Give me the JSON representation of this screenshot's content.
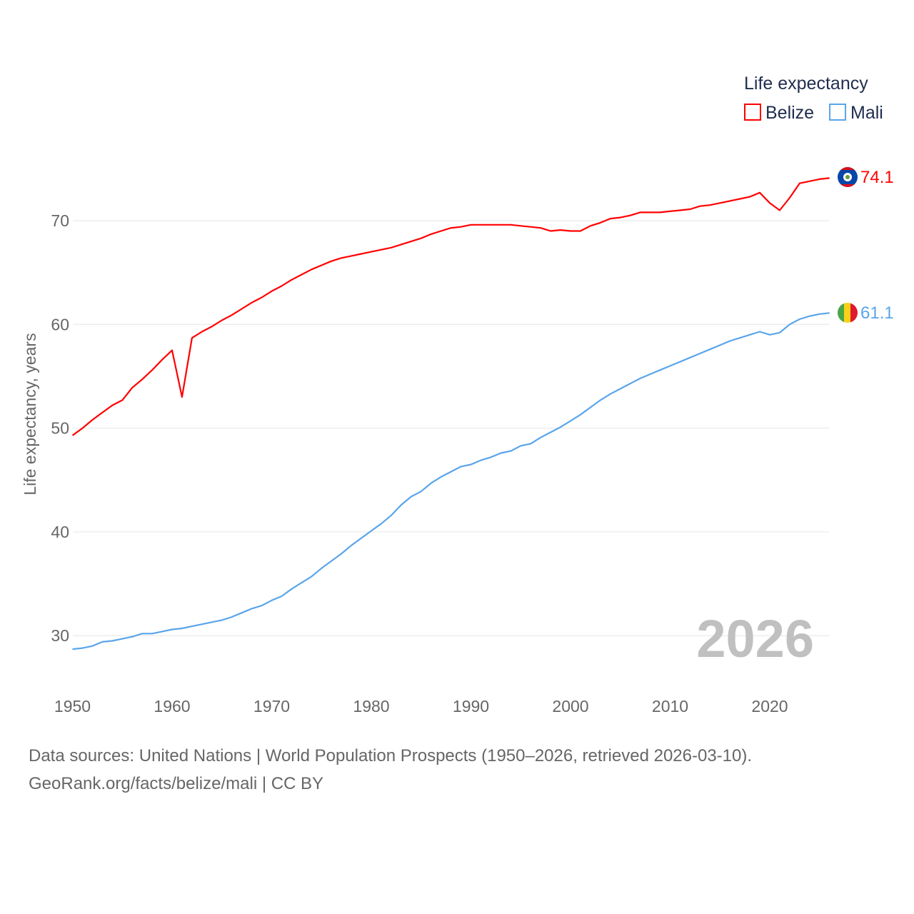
{
  "chart_data": {
    "type": "line",
    "title": "",
    "xlabel": "",
    "ylabel": "Life expectancy, years",
    "xlim": [
      1950,
      2026
    ],
    "ylim": [
      25,
      78
    ],
    "yticks": [
      30,
      40,
      50,
      60,
      70
    ],
    "xticks": [
      1950,
      1960,
      1970,
      1980,
      1990,
      2000,
      2010,
      2020
    ],
    "grid": true,
    "legend_title": "Life expectancy",
    "legend_position": "top-right",
    "year_label": "2026",
    "x_start": 1950,
    "series": [
      {
        "name": "Belize",
        "color": "#ff0000",
        "end_label": "74.1",
        "flag": "belize-flag",
        "values": [
          49.3,
          50.0,
          50.8,
          51.5,
          52.2,
          52.7,
          53.9,
          54.7,
          55.6,
          56.6,
          57.5,
          53.0,
          58.7,
          59.3,
          59.8,
          60.4,
          60.9,
          61.5,
          62.1,
          62.6,
          63.2,
          63.7,
          64.3,
          64.8,
          65.3,
          65.7,
          66.1,
          66.4,
          66.6,
          66.8,
          67.0,
          67.2,
          67.4,
          67.7,
          68.0,
          68.3,
          68.7,
          69.0,
          69.3,
          69.4,
          69.6,
          69.6,
          69.6,
          69.6,
          69.6,
          69.5,
          69.4,
          69.3,
          69.0,
          69.1,
          69.0,
          69.0,
          69.5,
          69.8,
          70.2,
          70.3,
          70.5,
          70.8,
          70.8,
          70.8,
          70.9,
          71.0,
          71.1,
          71.4,
          71.5,
          71.7,
          71.9,
          72.1,
          72.3,
          72.7,
          71.7,
          71.0,
          72.2,
          73.6,
          73.8,
          74.0,
          74.1
        ]
      },
      {
        "name": "Mali",
        "color": "#5aa5ea",
        "end_label": "61.1",
        "flag": "mali-flag",
        "values": [
          28.7,
          28.8,
          29.0,
          29.4,
          29.5,
          29.7,
          29.9,
          30.2,
          30.2,
          30.4,
          30.6,
          30.7,
          30.9,
          31.1,
          31.3,
          31.5,
          31.8,
          32.2,
          32.6,
          32.9,
          33.4,
          33.8,
          34.5,
          35.1,
          35.7,
          36.5,
          37.2,
          37.9,
          38.7,
          39.4,
          40.1,
          40.8,
          41.6,
          42.6,
          43.4,
          43.9,
          44.7,
          45.3,
          45.8,
          46.3,
          46.5,
          46.9,
          47.2,
          47.6,
          47.8,
          48.3,
          48.5,
          49.1,
          49.6,
          50.1,
          50.7,
          51.3,
          52.0,
          52.7,
          53.3,
          53.8,
          54.3,
          54.8,
          55.2,
          55.6,
          56.0,
          56.4,
          56.8,
          57.2,
          57.6,
          58.0,
          58.4,
          58.7,
          59.0,
          59.3,
          59.0,
          59.2,
          60.0,
          60.5,
          60.8,
          61.0,
          61.1
        ]
      }
    ]
  },
  "footer": {
    "sources": "Data sources: United Nations | World Population Prospects (1950–2026, retrieved 2026-03-10).",
    "credit": "GeoRank.org/facts/belize/mali | CC BY"
  }
}
